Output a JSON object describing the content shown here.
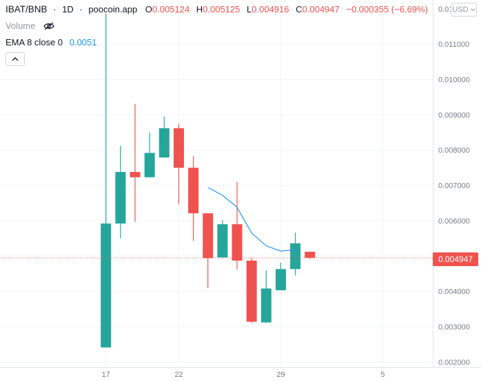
{
  "header": {
    "symbol": "IBAT/BNB",
    "sep1": "·",
    "interval": "1D",
    "sep2": "·",
    "source": "poocoin.app",
    "o_label": "O",
    "o_value": "0.005124",
    "h_label": "H",
    "h_value": "0.005125",
    "l_label": "L",
    "l_value": "0.004916",
    "c_label": "C",
    "c_value": "0.004947",
    "change": "−0.000355 (−6.69%)"
  },
  "volume_label": "Volume",
  "ema": {
    "label": "EMA 8 close 0",
    "value": "0.0051"
  },
  "currency": "USD",
  "last_price_label": "0.004947",
  "colors": {
    "up": "#26a69a",
    "down": "#ef5350",
    "ema": "#2196f3",
    "price_line": "#ef5350"
  },
  "chart_data": {
    "type": "candlestick",
    "ylim": [
      0.00185,
      0.01225
    ],
    "y_ticks": [
      "0.012000",
      "0.011000",
      "0.010000",
      "0.009000",
      "0.008000",
      "0.007000",
      "0.006000",
      "0.005000",
      "0.004000",
      "0.003000",
      "0.002000"
    ],
    "y_tick_values": [
      0.012,
      0.011,
      0.01,
      0.009,
      0.008,
      0.007,
      0.006,
      0.005,
      0.004,
      0.003,
      0.002
    ],
    "x_ticks": [
      {
        "label": "17",
        "day": 17
      },
      {
        "label": "22",
        "day": 22
      },
      {
        "label": "29",
        "day": 29
      },
      {
        "label": "5",
        "day": 36
      }
    ],
    "x_range_days": [
      9.73,
      39.43
    ],
    "last_close": 0.004947,
    "candles": [
      {
        "day": 17,
        "open": 0.00241,
        "high": 0.01186,
        "low": 0.00241,
        "close": 0.00592
      },
      {
        "day": 18,
        "open": 0.00592,
        "high": 0.00812,
        "low": 0.0055,
        "close": 0.00738
      },
      {
        "day": 19,
        "open": 0.00738,
        "high": 0.00931,
        "low": 0.00597,
        "close": 0.00723
      },
      {
        "day": 20,
        "open": 0.00723,
        "high": 0.0085,
        "low": 0.00723,
        "close": 0.00792
      },
      {
        "day": 21,
        "open": 0.00779,
        "high": 0.00895,
        "low": 0.00779,
        "close": 0.00862
      },
      {
        "day": 22,
        "open": 0.00862,
        "high": 0.00875,
        "low": 0.00646,
        "close": 0.0075
      },
      {
        "day": 23,
        "open": 0.0075,
        "high": 0.00783,
        "low": 0.00543,
        "close": 0.00621
      },
      {
        "day": 24,
        "open": 0.00621,
        "high": 0.00621,
        "low": 0.00409,
        "close": 0.00494
      },
      {
        "day": 25,
        "open": 0.00496,
        "high": 0.00602,
        "low": 0.00496,
        "close": 0.0059
      },
      {
        "day": 26,
        "open": 0.0059,
        "high": 0.0071,
        "low": 0.00462,
        "close": 0.00487
      },
      {
        "day": 27,
        "open": 0.00487,
        "high": 0.00494,
        "low": 0.0031,
        "close": 0.00314
      },
      {
        "day": 28,
        "open": 0.00312,
        "high": 0.0046,
        "low": 0.0031,
        "close": 0.00408
      },
      {
        "day": 29,
        "open": 0.00403,
        "high": 0.00481,
        "low": 0.00403,
        "close": 0.00463
      },
      {
        "day": 30,
        "open": 0.00463,
        "high": 0.00566,
        "low": 0.00445,
        "close": 0.00536
      },
      {
        "day": 31,
        "open": 0.00512,
        "high": 0.00513,
        "low": 0.00492,
        "close": 0.00495
      }
    ],
    "ema": [
      {
        "day": 24,
        "value": 0.00694
      },
      {
        "day": 25,
        "value": 0.00672
      },
      {
        "day": 26,
        "value": 0.00638
      },
      {
        "day": 27,
        "value": 0.00565
      },
      {
        "day": 28,
        "value": 0.00529
      },
      {
        "day": 29,
        "value": 0.00514
      },
      {
        "day": 30,
        "value": 0.00518
      }
    ]
  }
}
